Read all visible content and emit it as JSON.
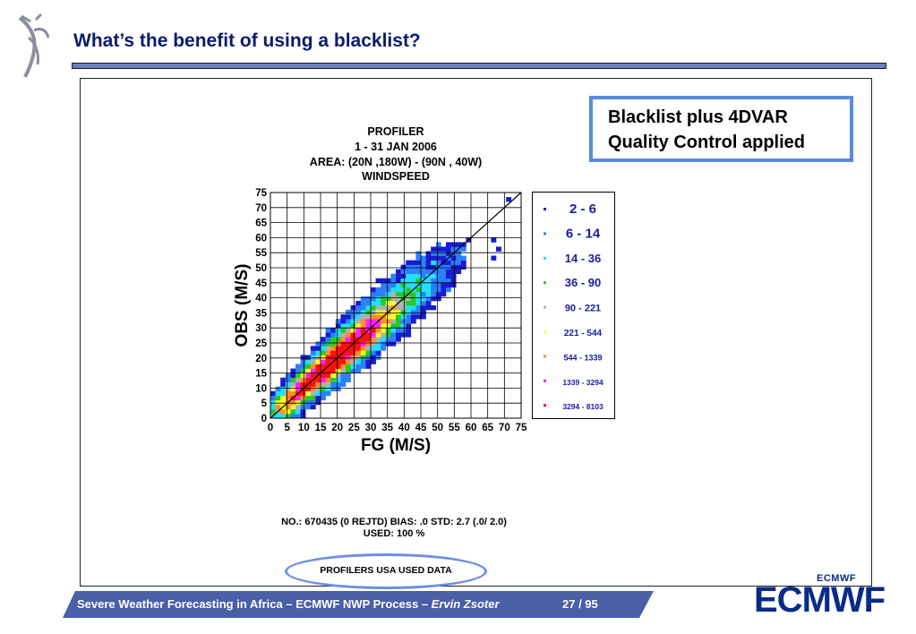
{
  "slide": {
    "title": "What’s the benefit of using a blacklist?",
    "callout": [
      "Blacklist plus 4DVAR",
      "Quality Control applied"
    ],
    "footer": {
      "text_main": "Severe Weather Forecasting in Africa – ECMWF NWP Process – ",
      "author": "Ervin Zsoter",
      "page": "27 / 95"
    },
    "logo": {
      "small": "ECMWF",
      "big": "ECMWF"
    }
  },
  "chart_data": {
    "type": "heatmap",
    "title_lines": [
      "PROFILER",
      "1 - 31 JAN 2006",
      "AREA: (20N ,180W) - (90N , 40W)",
      "WINDSPEED"
    ],
    "xlabel": "FG (M/S)",
    "ylabel": "OBS (M/S)",
    "xlim": [
      0,
      75
    ],
    "ylim": [
      0,
      75
    ],
    "ticks": [
      0,
      5,
      10,
      15,
      20,
      25,
      30,
      35,
      40,
      45,
      50,
      55,
      60,
      65,
      70,
      75
    ],
    "grid": true,
    "diagonal_line": true,
    "legend_placement": "right",
    "legend": [
      {
        "label": "2 - 6",
        "color": "#1a1ad0"
      },
      {
        "label": "6 - 14",
        "color": "#2a80ff"
      },
      {
        "label": "14 - 36",
        "color": "#22e0ff"
      },
      {
        "label": "36 - 90",
        "color": "#22cc22"
      },
      {
        "label": "90 - 221",
        "color": "#b0b0b0"
      },
      {
        "label": "221 - 544",
        "color": "#ffff22"
      },
      {
        "label": "544 - 1339",
        "color": "#ff9020"
      },
      {
        "label": "1339 - 3294",
        "color": "#ff22ff"
      },
      {
        "label": "3294 - 8103",
        "color": "#ff1010"
      }
    ],
    "stats_line1": "NO.: 670435 (0 REJTD) BIAS: .0 STD: 2.7 (.0/ 2.0)",
    "stats_line2": "USED: 100 %",
    "source_label": "PROFILERS USA USED DATA"
  }
}
